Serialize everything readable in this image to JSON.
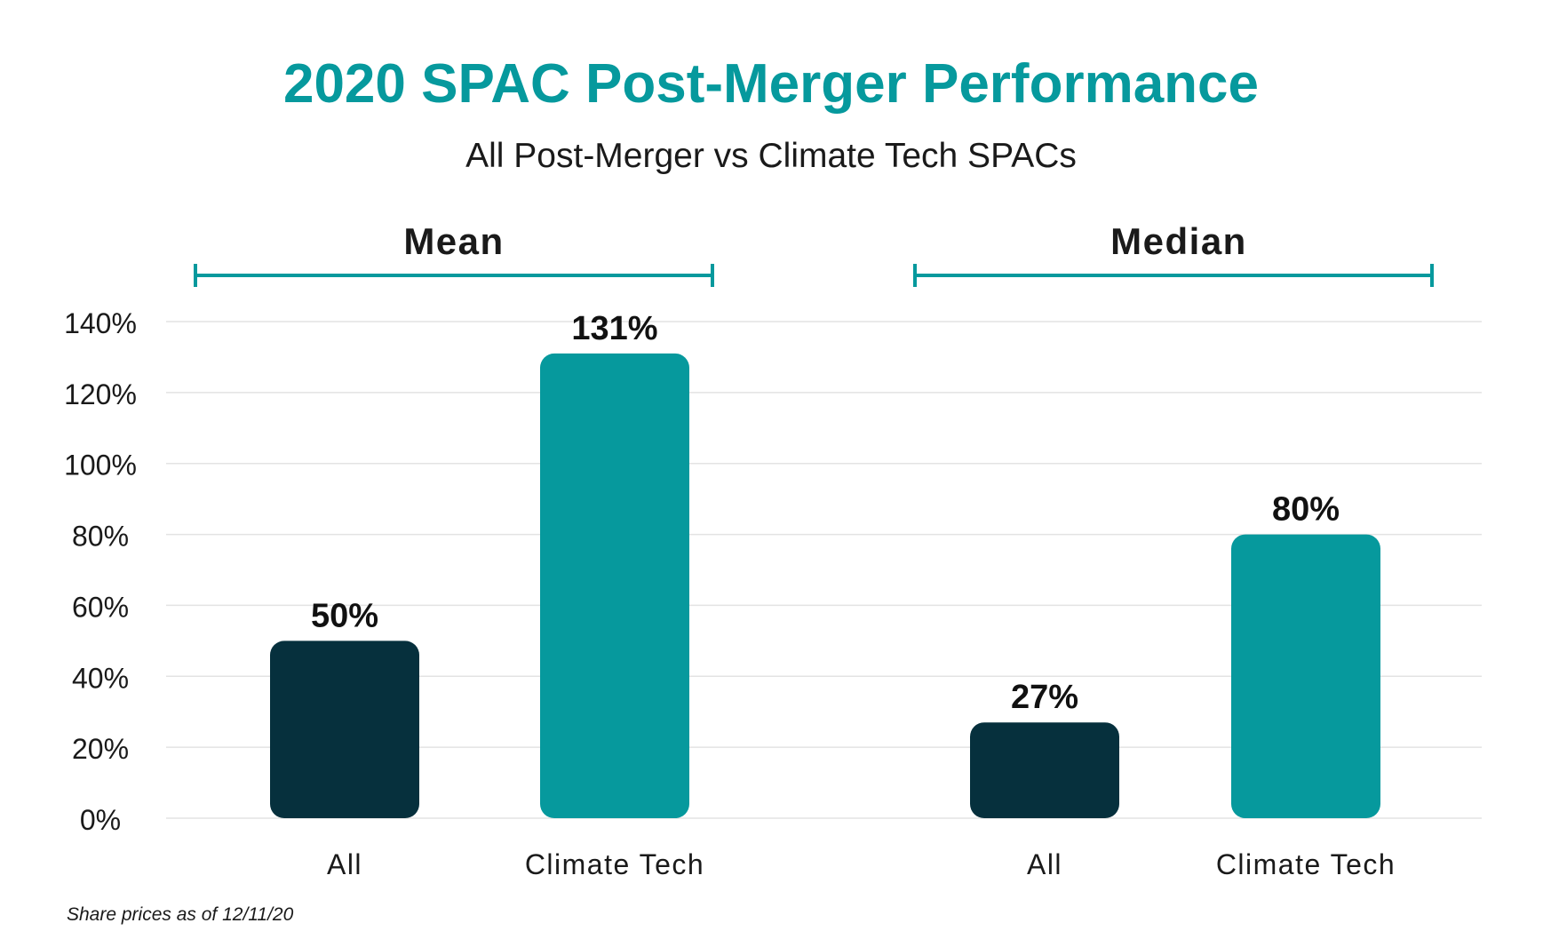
{
  "colors": {
    "accent": "#06999D",
    "dark": "#06303D",
    "text": "#1A1A1A",
    "grid": "#E3E3E3"
  },
  "chart_data": {
    "type": "bar",
    "title": "2020 SPAC Post-Merger Performance",
    "subtitle": "All Post-Merger vs Climate Tech SPACs",
    "footnote": "Share prices as of 12/11/20",
    "ylim": [
      0,
      140
    ],
    "yticks": [
      "0%",
      "20%",
      "40%",
      "60%",
      "80%",
      "100%",
      "120%",
      "140%"
    ],
    "ytick_values": [
      0,
      20,
      40,
      60,
      80,
      100,
      120,
      140
    ],
    "grid": true,
    "groups": [
      {
        "name": "Mean",
        "bars": [
          {
            "category": "All",
            "value": 50,
            "label": "50%",
            "color": "#06303D"
          },
          {
            "category": "Climate Tech",
            "value": 131,
            "label": "131%",
            "color": "#06999D"
          }
        ]
      },
      {
        "name": "Median",
        "bars": [
          {
            "category": "All",
            "value": 27,
            "label": "27%",
            "color": "#06303D"
          },
          {
            "category": "Climate Tech",
            "value": 80,
            "label": "80%",
            "color": "#06999D"
          }
        ]
      }
    ]
  }
}
